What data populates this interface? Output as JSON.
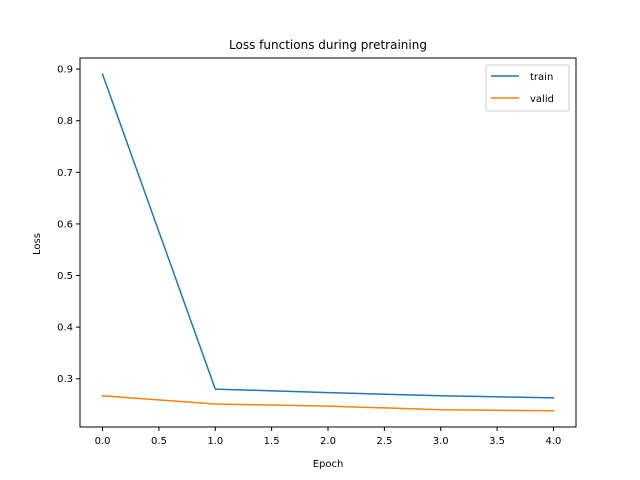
{
  "chart_data": {
    "type": "line",
    "title": "Loss functions during pretraining",
    "xlabel": "Epoch",
    "ylabel": "Loss",
    "x": [
      0,
      1,
      2,
      3,
      4
    ],
    "xlim": [
      -0.2,
      4.2
    ],
    "ylim": [
      0.2065,
      0.9215
    ],
    "xticks": [
      0.0,
      0.5,
      1.0,
      1.5,
      2.0,
      2.5,
      3.0,
      3.5,
      4.0
    ],
    "xtick_labels": [
      "0.0",
      "0.5",
      "1.0",
      "1.5",
      "2.0",
      "2.5",
      "3.0",
      "3.5",
      "4.0"
    ],
    "yticks": [
      0.3,
      0.4,
      0.5,
      0.6,
      0.7,
      0.8,
      0.9
    ],
    "ytick_labels": [
      "0.3",
      "0.4",
      "0.5",
      "0.6",
      "0.7",
      "0.8",
      "0.9"
    ],
    "grid": false,
    "legend_position": "top-right",
    "series": [
      {
        "name": "train",
        "color": "#1f77b4",
        "values": [
          0.89,
          0.28,
          0.273,
          0.267,
          0.263
        ]
      },
      {
        "name": "valid",
        "color": "#ff7f0e",
        "values": [
          0.267,
          0.251,
          0.247,
          0.24,
          0.238
        ]
      }
    ]
  }
}
